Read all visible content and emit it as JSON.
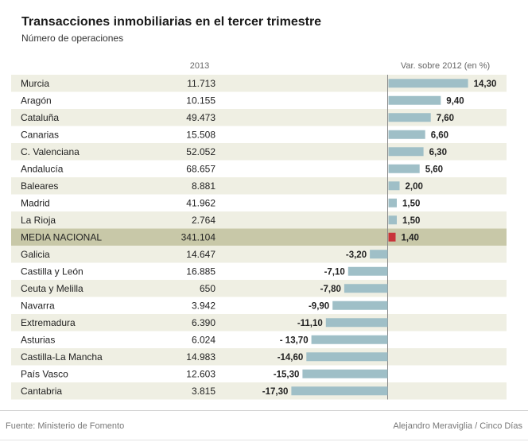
{
  "chart_data": {
    "type": "bar",
    "title": "Transacciones inmobiliarias en el tercer trimestre",
    "subtitle": "Número de operaciones",
    "columns": {
      "year": "2013",
      "variation": "Var. sobre 2012 (en %)"
    },
    "rows": [
      {
        "region": "Murcia",
        "operations": "11.713",
        "variation": 14.3,
        "label": "14,30"
      },
      {
        "region": "Aragón",
        "operations": "10.155",
        "variation": 9.4,
        "label": "9,40"
      },
      {
        "region": "Cataluña",
        "operations": "49.473",
        "variation": 7.6,
        "label": "7,60"
      },
      {
        "region": "Canarias",
        "operations": "15.508",
        "variation": 6.6,
        "label": "6,60"
      },
      {
        "region": "C. Valenciana",
        "operations": "52.052",
        "variation": 6.3,
        "label": "6,30"
      },
      {
        "region": "Andalucía",
        "operations": "68.657",
        "variation": 5.6,
        "label": "5,60"
      },
      {
        "region": "Baleares",
        "operations": "8.881",
        "variation": 2.0,
        "label": "2,00"
      },
      {
        "region": "Madrid",
        "operations": "41.962",
        "variation": 1.5,
        "label": "1,50"
      },
      {
        "region": "La Rioja",
        "operations": "2.764",
        "variation": 1.5,
        "label": "1,50"
      },
      {
        "region": "MEDIA NACIONAL",
        "operations": "341.104",
        "variation": 1.4,
        "label": "1,40",
        "highlight": true
      },
      {
        "region": "Galicia",
        "operations": "14.647",
        "variation": -3.2,
        "label": "-3,20"
      },
      {
        "region": "Castilla y León",
        "operations": "16.885",
        "variation": -7.1,
        "label": "-7,10"
      },
      {
        "region": "Ceuta y Melilla",
        "operations": "650",
        "variation": -7.8,
        "label": "-7,80"
      },
      {
        "region": "Navarra",
        "operations": "3.942",
        "variation": -9.9,
        "label": "-9,90"
      },
      {
        "region": "Extremadura",
        "operations": "6.390",
        "variation": -11.1,
        "label": "-11,10"
      },
      {
        "region": "Asturias",
        "operations": "6.024",
        "variation": -13.7,
        "label": "-  13,70"
      },
      {
        "region": "Castilla-La Mancha",
        "operations": "14.983",
        "variation": -14.6,
        "label": "-14,60"
      },
      {
        "region": "País Vasco",
        "operations": "12.603",
        "variation": -15.3,
        "label": "-15,30"
      },
      {
        "region": "Cantabria",
        "operations": "3.815",
        "variation": -17.3,
        "label": "-17,30"
      }
    ]
  },
  "footer": {
    "source": "Fuente: Ministerio de Fomento",
    "credit": "Alejandro Meraviglia / Cinco Días"
  },
  "colors": {
    "bar": "#9fbfc7",
    "highlight_bar": "#c8343a",
    "highlight_row": "#c8c8a8",
    "stripe": "#efefe3",
    "axis": "#8a8a8a"
  }
}
